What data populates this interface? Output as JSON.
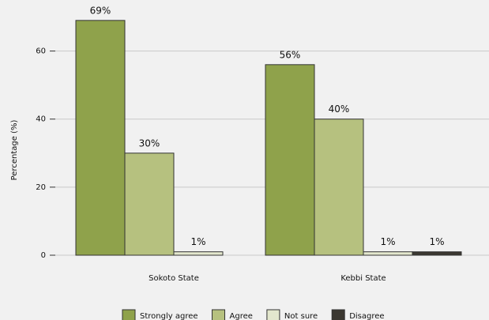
{
  "chart_data": {
    "type": "bar",
    "y_label": "Percentage (%)",
    "categories": [
      "Sokoto State",
      "Kebbi State"
    ],
    "series": [
      {
        "name": "Strongly agree",
        "color": "#8fa24b",
        "values": [
          69,
          56
        ],
        "value_labels": [
          "69%",
          "56%"
        ]
      },
      {
        "name": "Agree",
        "color": "#b6c17f",
        "values": [
          30,
          40
        ],
        "value_labels": [
          "30%",
          "40%"
        ]
      },
      {
        "name": "Not sure",
        "color": "#e3e7cd",
        "values": [
          1,
          1
        ],
        "value_labels": [
          "1%",
          "1%"
        ]
      },
      {
        "name": "Disagree",
        "color": "#3b3831",
        "values": [
          null,
          1
        ],
        "value_labels": [
          null,
          "1%"
        ]
      }
    ],
    "ylim": [
      0,
      75
    ],
    "yticks": [
      0,
      20,
      40,
      60
    ],
    "grid": true,
    "legend": "bottom"
  }
}
